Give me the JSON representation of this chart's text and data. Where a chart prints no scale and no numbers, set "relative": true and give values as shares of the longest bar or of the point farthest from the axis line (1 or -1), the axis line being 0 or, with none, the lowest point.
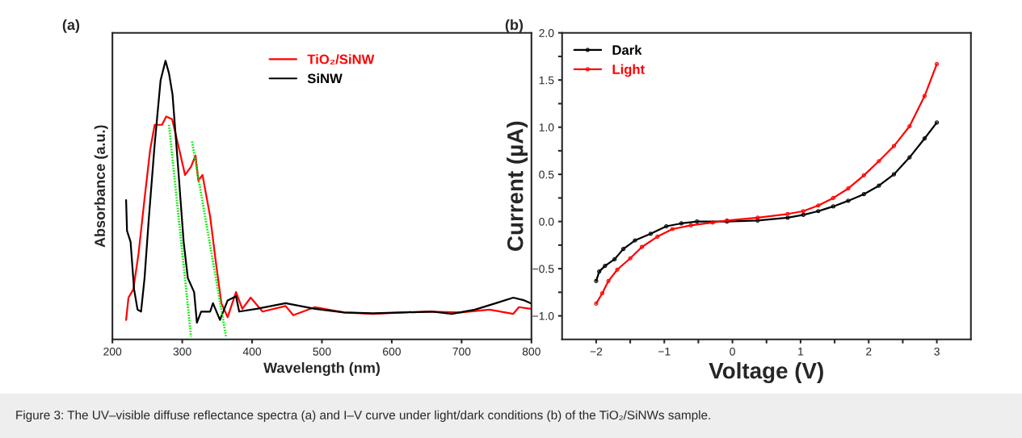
{
  "chart_data": [
    {
      "type": "line",
      "title": "(a)",
      "xlabel": "Wavelength (nm)",
      "ylabel": "Absorbance (a.u.)",
      "relative": true,
      "xlim": [
        200,
        800
      ],
      "xticks": [
        200,
        300,
        400,
        500,
        600,
        700,
        800
      ],
      "legend": "top",
      "marker": "none",
      "grid": false,
      "annotations": [
        "Figure 3: The UV–visible diffuse reflectance spectra (a) and I–V curve under light/dark conditions (b) of the TiO₂/SiNWs sample."
      ],
      "series": [
        {
          "name": "TiO₂/SiNW",
          "color": "#ff0000",
          "x": [
            219.6,
            223,
            230,
            237.5,
            246,
            254,
            260.5,
            271,
            277,
            285.5,
            294,
            304,
            312.6,
            319,
            323,
            329,
            340,
            348,
            356,
            365,
            377,
            386,
            398,
            415,
            448,
            459,
            490,
            532,
            573,
            615,
            657,
            698,
            740,
            774,
            782,
            799
          ],
          "values": [
            0.07,
            0.15,
            0.18,
            0.31,
            0.505,
            0.68,
            0.77,
            0.77,
            0.8,
            0.79,
            0.7,
            0.59,
            0.62,
            0.66,
            0.57,
            0.59,
            0.44,
            0.28,
            0.13,
            0.08,
            0.17,
            0.11,
            0.15,
            0.1,
            0.12,
            0.087,
            0.116,
            0.097,
            0.092,
            0.097,
            0.1,
            0.097,
            0.107,
            0.092,
            0.116,
            0.11
          ]
        },
        {
          "name": "SiNW",
          "color": "#000000",
          "x": [
            219.6,
            220.9,
            226,
            231,
            236,
            241,
            246,
            252,
            260.5,
            269,
            276,
            281,
            286,
            294,
            302,
            308,
            317,
            321,
            327,
            340,
            344,
            354,
            365,
            377,
            381.5,
            406.5,
            448,
            490,
            532,
            573,
            615,
            657,
            686,
            719,
            749,
            774,
            790,
            799
          ],
          "values": [
            0.5,
            0.39,
            0.35,
            0.18,
            0.107,
            0.1,
            0.22,
            0.43,
            0.7,
            0.93,
            1.0,
            0.955,
            0.88,
            0.62,
            0.35,
            0.22,
            0.17,
            0.06,
            0.1,
            0.1,
            0.13,
            0.07,
            0.14,
            0.155,
            0.1,
            0.11,
            0.13,
            0.11,
            0.097,
            0.094,
            0.097,
            0.1,
            0.092,
            0.107,
            0.13,
            0.15,
            0.14,
            0.13
          ]
        },
        {
          "color": "#00ee00",
          "line_style": "dotted",
          "x": [
            281,
            312.6
          ],
          "values": [
            0.77,
            0.01
          ]
        },
        {
          "color": "#00ee00",
          "line_style": "dotted",
          "x": [
            314,
            362.7
          ],
          "values": [
            0.71,
            0.01
          ]
        }
      ]
    },
    {
      "type": "line",
      "title": "(b)",
      "xlabel": "Voltage (V)",
      "ylabel": "Current (µA)",
      "xlim": [
        -2.5,
        3.5
      ],
      "ylim": [
        -1.25,
        2.0
      ],
      "xticks": [
        {
          "value": -2,
          "label": "−2"
        },
        {
          "value": -1.5,
          "label": null
        },
        {
          "value": -1,
          "label": "−1"
        },
        {
          "value": -0.5,
          "label": null
        },
        0,
        {
          "value": 0.5,
          "label": null
        },
        1,
        {
          "value": 1.5,
          "label": null
        },
        2,
        {
          "value": 2.5,
          "label": null
        },
        3
      ],
      "yticks": [
        {
          "value": -1.0,
          "label": "−1.0"
        },
        {
          "value": -0.75,
          "label": null
        },
        {
          "value": -0.5,
          "label": "−0.5"
        },
        {
          "value": -0.25,
          "label": null
        },
        {
          "value": 0.0,
          "label": "0.0"
        },
        {
          "value": 0.25,
          "label": null
        },
        {
          "value": 0.5,
          "label": "0.5"
        },
        {
          "value": 0.75,
          "label": null
        },
        {
          "value": 1.0,
          "label": "1.0"
        },
        {
          "value": 1.25,
          "label": null
        },
        {
          "value": 1.5,
          "label": "1.5"
        },
        {
          "value": 1.75,
          "label": null
        },
        {
          "value": 2.0,
          "label": "2.0"
        }
      ],
      "legend": "top left",
      "marker": "circle",
      "grid": false,
      "series": [
        {
          "name": "Dark",
          "color": "#000000",
          "x": [
            -2,
            -1.955,
            -1.87,
            -1.73,
            -1.6,
            -1.43,
            -1.2,
            -0.97,
            -0.75,
            -0.52,
            -0.08,
            0.37,
            0.81,
            1.04,
            1.26,
            1.48,
            1.7,
            1.93,
            2.15,
            2.37,
            2.6,
            2.82,
            3
          ],
          "values": [
            -0.63,
            -0.53,
            -0.47,
            -0.4,
            -0.29,
            -0.2,
            -0.13,
            -0.05,
            -0.02,
            0,
            0,
            0.01,
            0.04,
            0.07,
            0.11,
            0.16,
            0.22,
            0.29,
            0.38,
            0.5,
            0.68,
            0.88,
            1.05
          ]
        },
        {
          "name": "Light",
          "color": "#ff0000",
          "x": [
            -2,
            -1.91,
            -1.82,
            -1.69,
            -1.5,
            -1.33,
            -1.1,
            -0.88,
            -0.61,
            -0.29,
            -0.08,
            0.37,
            0.81,
            1.04,
            1.26,
            1.48,
            1.7,
            1.93,
            2.15,
            2.37,
            2.6,
            2.82,
            3
          ],
          "values": [
            -0.87,
            -0.76,
            -0.63,
            -0.51,
            -0.39,
            -0.27,
            -0.16,
            -0.08,
            -0.04,
            -0.01,
            0.01,
            0.04,
            0.08,
            0.11,
            0.17,
            0.25,
            0.35,
            0.49,
            0.64,
            0.8,
            1.01,
            1.33,
            1.67
          ]
        }
      ]
    }
  ]
}
